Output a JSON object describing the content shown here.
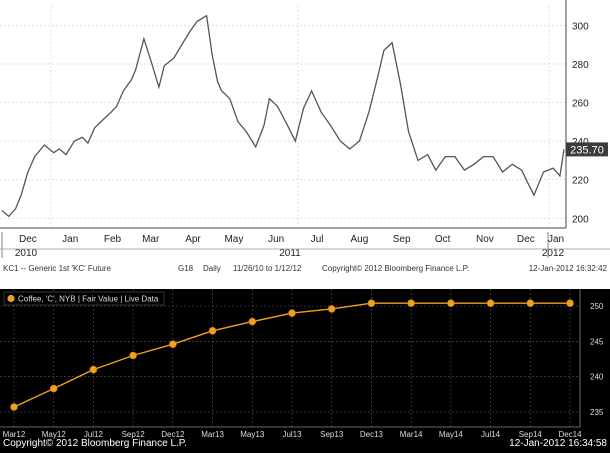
{
  "chart_data": [
    {
      "type": "line",
      "title": "",
      "footer_left": "KC1 -- Generic 1st 'KC' Future",
      "footer_ticker": "G18",
      "footer_freq": "Daily",
      "footer_range": "11/26/10 to 1/12/12",
      "footer_copyright": "Copyright© 2012 Bloomberg Finance L.P.",
      "footer_timestamp": "12-Jan-2012 16:32:42",
      "last_value_label": "235.70",
      "ylim": [
        195,
        310
      ],
      "yticks": [
        200,
        220,
        240,
        260,
        280,
        300
      ],
      "ytick_labels": [
        "200",
        "220",
        "240",
        "260",
        "280",
        "300"
      ],
      "x_month_labels": [
        "Dec",
        "Jan",
        "Feb",
        "Mar",
        "Apr",
        "May",
        "Jun",
        "Jul",
        "Aug",
        "Sep",
        "Oct",
        "Nov",
        "Dec",
        "Jan"
      ],
      "x_year_labels": [
        "2010",
        "2011",
        "2012"
      ],
      "x_range": [
        "2010-11-26",
        "2012-01-12"
      ],
      "grid": true,
      "line_color": "#555555",
      "series": [
        {
          "x": [
            "2010-11-26",
            "2010-12-01",
            "2010-12-06",
            "2010-12-10",
            "2010-12-15",
            "2010-12-20",
            "2010-12-27",
            "2011-01-03",
            "2011-01-07",
            "2011-01-12",
            "2011-01-18",
            "2011-01-24",
            "2011-01-28",
            "2011-02-02",
            "2011-02-08",
            "2011-02-14",
            "2011-02-18",
            "2011-02-23",
            "2011-03-01",
            "2011-03-04",
            "2011-03-10",
            "2011-03-15",
            "2011-03-21",
            "2011-03-25",
            "2011-04-01",
            "2011-04-06",
            "2011-04-12",
            "2011-04-18",
            "2011-04-25",
            "2011-04-29",
            "2011-05-03",
            "2011-05-06",
            "2011-05-12",
            "2011-05-18",
            "2011-05-24",
            "2011-05-31",
            "2011-06-06",
            "2011-06-10",
            "2011-06-16",
            "2011-06-22",
            "2011-06-29",
            "2011-07-05",
            "2011-07-11",
            "2011-07-18",
            "2011-07-25",
            "2011-08-01",
            "2011-08-08",
            "2011-08-15",
            "2011-08-22",
            "2011-08-29",
            "2011-09-02",
            "2011-09-08",
            "2011-09-14",
            "2011-09-20",
            "2011-09-27",
            "2011-10-04",
            "2011-10-10",
            "2011-10-17",
            "2011-10-24",
            "2011-10-31",
            "2011-11-07",
            "2011-11-14",
            "2011-11-21",
            "2011-11-28",
            "2011-12-05",
            "2011-12-12",
            "2011-12-16",
            "2011-12-21",
            "2011-12-28",
            "2012-01-04",
            "2012-01-09",
            "2012-01-12"
          ],
          "values": [
            204,
            201,
            205,
            212,
            224,
            232,
            238,
            234,
            236,
            233,
            240,
            242,
            239,
            247,
            251,
            255,
            258,
            266,
            272,
            277,
            293,
            282,
            268,
            279,
            283,
            289,
            296,
            302,
            305,
            285,
            271,
            266,
            262,
            250,
            245,
            237,
            248,
            262,
            258,
            250,
            240,
            257,
            266,
            255,
            248,
            240,
            236,
            240,
            255,
            275,
            287,
            291,
            270,
            245,
            230,
            233,
            225,
            232,
            232,
            225,
            228,
            232,
            232,
            224,
            228,
            225,
            219,
            212,
            224,
            226,
            222,
            235.7
          ]
        }
      ]
    },
    {
      "type": "line",
      "title": "",
      "legend": "Coffee, 'C', NYB | Fair Value | Live Data",
      "legend_position": "top-left",
      "footer_copyright": "Copyright© 2012 Bloomberg Finance L.P.",
      "footer_timestamp": "12-Jan-2012 16:34:58",
      "ylim": [
        234,
        251
      ],
      "yticks": [
        235,
        240,
        245,
        250
      ],
      "ytick_labels": [
        "235",
        "240",
        "245",
        "250"
      ],
      "grid": true,
      "line_color": "#f0a020",
      "categories": [
        "Mar12",
        "May12",
        "Jul12",
        "Sep12",
        "Dec12",
        "Mar13",
        "May13",
        "Jul13",
        "Sep13",
        "Dec13",
        "Mar14",
        "May14",
        "Jul14",
        "Sep14",
        "Dec14"
      ],
      "series": [
        {
          "name": "Coffee, 'C', NYB",
          "values": [
            235.7,
            238.3,
            241.0,
            243.0,
            244.6,
            246.5,
            247.8,
            249.0,
            249.6,
            250.4,
            250.4,
            250.4,
            250.4,
            250.4,
            250.4
          ]
        }
      ]
    }
  ]
}
